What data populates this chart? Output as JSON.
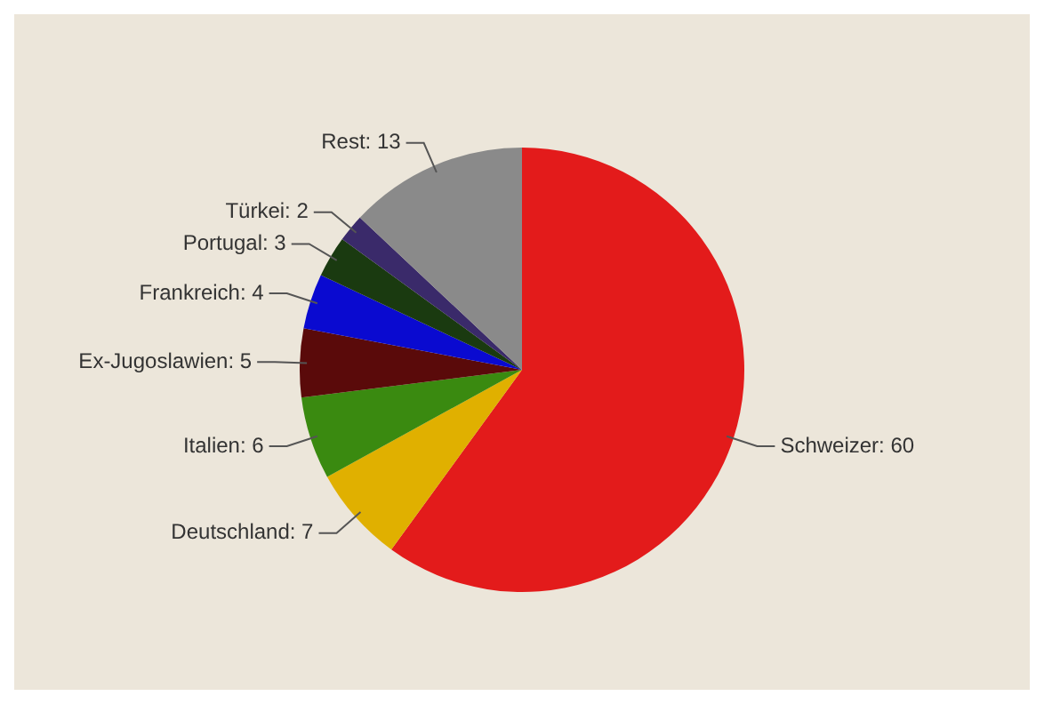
{
  "chart_data": {
    "type": "pie",
    "categories": [
      "Schweizer",
      "Deutschland",
      "Italien",
      "Ex-Jugoslawien",
      "Frankreich",
      "Portugal",
      "Türkei",
      "Rest"
    ],
    "values": [
      60,
      7,
      6,
      5,
      4,
      3,
      2,
      13
    ],
    "value_labels": [
      ": 60",
      ": 7",
      ": 6",
      ": 5",
      ": 4",
      ": 3",
      ": 2",
      ": 13"
    ],
    "colors": [
      "#e31b1b",
      "#e0b000",
      "#3a8a10",
      "#5a0a0a",
      "#0a0ad0",
      "#1a3a10",
      "#3a2a6a",
      "#8a8a8a"
    ],
    "legend": false
  }
}
